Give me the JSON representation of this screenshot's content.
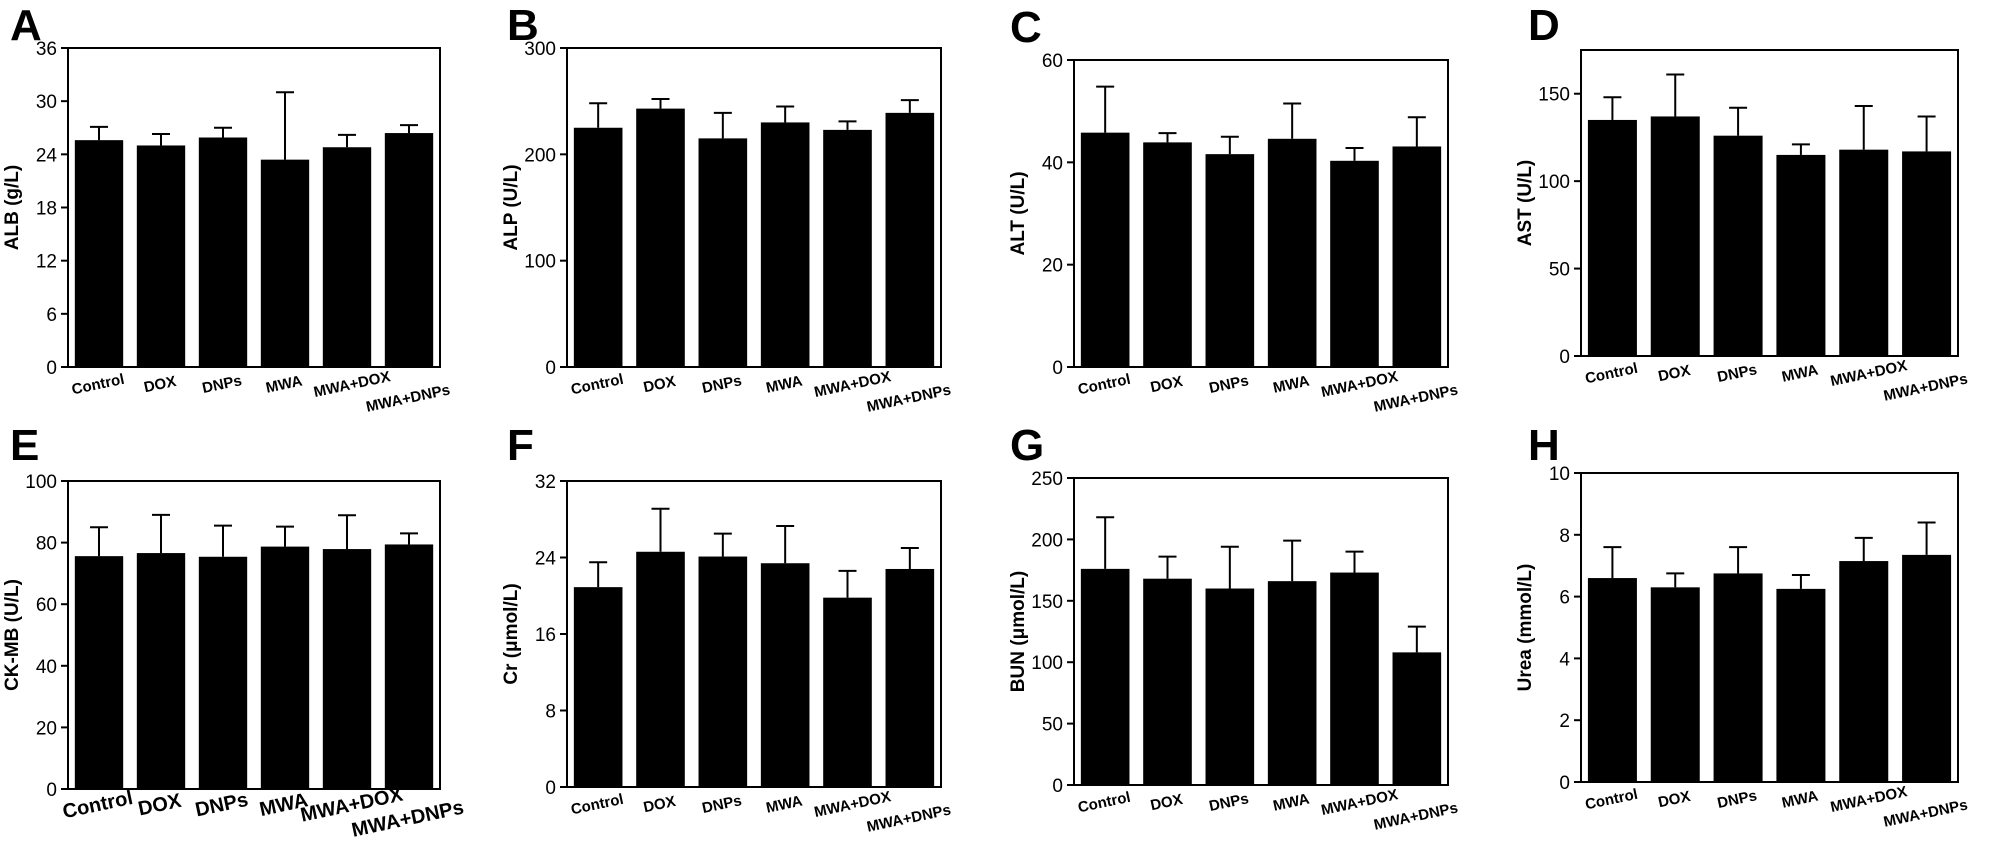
{
  "chart_data": [
    {
      "panel": "A",
      "type": "bar",
      "ylabel": "ALB (g/L)",
      "categories": [
        "Control",
        "DOX",
        "DNPs",
        "MWA",
        "MWA+DOX",
        "MWA+DNPs"
      ],
      "values": [
        25.6,
        25.0,
        25.9,
        23.4,
        24.8,
        26.4
      ],
      "errors": [
        1.5,
        1.3,
        1.1,
        7.6,
        1.4,
        0.9
      ],
      "ylim": [
        0,
        36
      ],
      "yticks": [
        0,
        6,
        12,
        18,
        24,
        30,
        36
      ]
    },
    {
      "panel": "B",
      "type": "bar",
      "ylabel": "ALP (U/L)",
      "categories": [
        "Control",
        "DOX",
        "DNPs",
        "MWA",
        "MWA+DOX",
        "MWA+DNPs"
      ],
      "values": [
        225,
        243,
        215,
        230,
        223,
        239
      ],
      "errors": [
        23,
        9,
        24,
        15,
        8,
        12
      ],
      "ylim": [
        0,
        300
      ],
      "yticks": [
        0,
        100,
        200,
        300
      ]
    },
    {
      "panel": "C",
      "type": "bar",
      "ylabel": "ALT (U/L)",
      "categories": [
        "Control",
        "DOX",
        "DNPs",
        "MWA",
        "MWA+DOX",
        "MWA+DNPs"
      ],
      "values": [
        45.8,
        43.9,
        41.6,
        44.6,
        40.3,
        43.1
      ],
      "errors": [
        9.0,
        1.8,
        3.4,
        6.9,
        2.5,
        5.7
      ],
      "ylim": [
        0,
        60
      ],
      "yticks": [
        0,
        20,
        40,
        60
      ]
    },
    {
      "panel": "D",
      "type": "bar",
      "ylabel": "AST (U/L)",
      "categories": [
        "Control",
        "DOX",
        "DNPs",
        "MWA",
        "MWA+DOX",
        "MWA+DNPs"
      ],
      "values": [
        135,
        137,
        126,
        115,
        118,
        117
      ],
      "errors": [
        13,
        24,
        16,
        6,
        25,
        20
      ],
      "ylim": [
        0,
        175
      ],
      "yticks": [
        0,
        50,
        100,
        150
      ]
    },
    {
      "panel": "E",
      "type": "bar",
      "ylabel": "CK-MB (U/L)",
      "categories": [
        "Control",
        "DOX",
        "DNPs",
        "MWA",
        "MWA+DOX",
        "MWA+DNPs"
      ],
      "values": [
        75.6,
        76.6,
        75.4,
        78.7,
        77.9,
        79.4
      ],
      "errors": [
        9.4,
        12.4,
        10.1,
        6.5,
        11.0,
        3.6
      ],
      "ylim": [
        0,
        100
      ],
      "yticks": [
        0,
        20,
        40,
        60,
        80,
        100
      ]
    },
    {
      "panel": "F",
      "type": "bar",
      "ylabel": "Cr (μmol/L)",
      "categories": [
        "Control",
        "DOX",
        "DNPs",
        "MWA",
        "MWA+DOX",
        "MWA+DNPs"
      ],
      "values": [
        20.9,
        24.6,
        24.1,
        23.4,
        19.8,
        22.8
      ],
      "errors": [
        2.6,
        4.5,
        2.4,
        3.9,
        2.8,
        2.2
      ],
      "ylim": [
        0,
        32
      ],
      "yticks": [
        0,
        8,
        16,
        24,
        32
      ]
    },
    {
      "panel": "G",
      "type": "bar",
      "ylabel": "BUN (μmol/L)",
      "categories": [
        "Control",
        "DOX",
        "DNPs",
        "MWA",
        "MWA+DOX",
        "MWA+DNPs"
      ],
      "values": [
        176,
        168,
        160,
        166,
        173,
        108
      ],
      "errors": [
        42,
        18,
        34,
        33,
        17,
        21
      ],
      "ylim": [
        0,
        250
      ],
      "yticks": [
        0,
        50,
        100,
        150,
        200,
        250
      ]
    },
    {
      "panel": "H",
      "type": "bar",
      "ylabel": "Urea (mmol/L)",
      "categories": [
        "Control",
        "DOX",
        "DNPs",
        "MWA",
        "MWA+DOX",
        "MWA+DNPs"
      ],
      "values": [
        6.6,
        6.3,
        6.75,
        6.25,
        7.15,
        7.35
      ],
      "errors": [
        1.0,
        0.45,
        0.85,
        0.45,
        0.75,
        1.05
      ],
      "ylim": [
        0,
        10
      ],
      "yticks": [
        0,
        2,
        4,
        6,
        8,
        10
      ]
    }
  ]
}
